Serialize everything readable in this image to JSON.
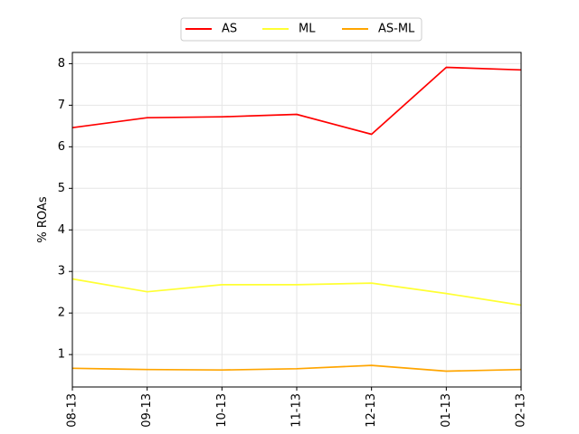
{
  "chart_data": {
    "type": "line",
    "categories": [
      "08-13",
      "09-13",
      "10-13",
      "11-13",
      "12-13",
      "01-13",
      "02-13"
    ],
    "series": [
      {
        "name": "AS",
        "color": "#ff0000",
        "values": [
          6.46,
          6.7,
          6.72,
          6.78,
          6.3,
          7.91,
          7.85
        ]
      },
      {
        "name": "ML",
        "color": "#ffff33",
        "values": [
          2.82,
          2.51,
          2.68,
          2.68,
          2.72,
          2.47,
          2.19
        ]
      },
      {
        "name": "AS-ML",
        "color": "#ffa500",
        "values": [
          0.67,
          0.64,
          0.63,
          0.66,
          0.74,
          0.6,
          0.64
        ]
      }
    ],
    "xlabel": "",
    "ylabel": "% ROAs",
    "ylim": [
      0.22,
      8.27
    ],
    "yticks": [
      "1",
      "2",
      "3",
      "4",
      "5",
      "6",
      "7",
      "8"
    ],
    "grid": true,
    "legend_position": "top-center"
  }
}
